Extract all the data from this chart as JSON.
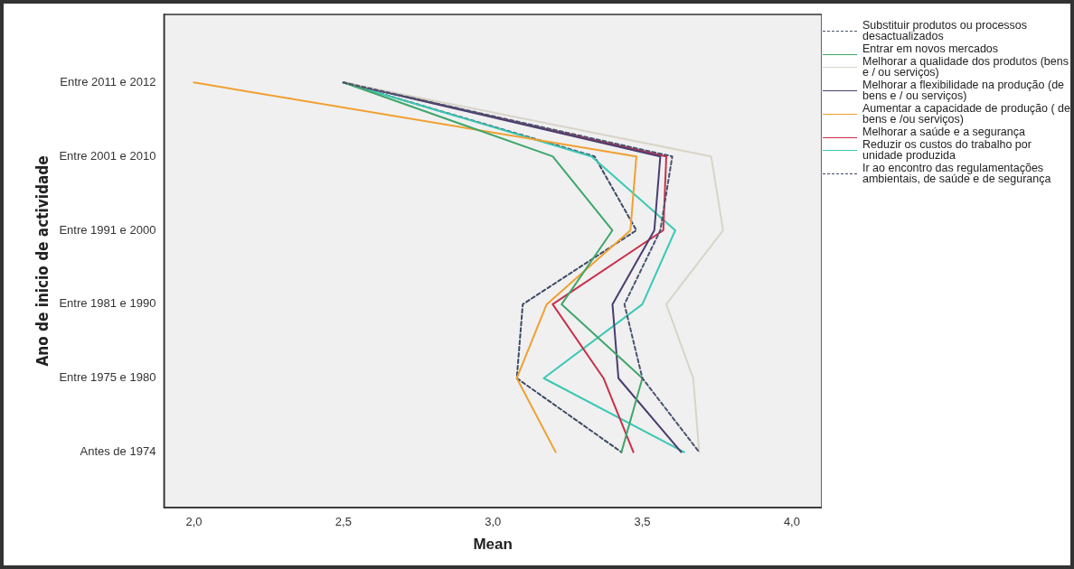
{
  "chart_data": {
    "type": "line",
    "orientation": "horizontal",
    "xlabel": "Mean",
    "ylabel": "Ano de inicio de actividade",
    "categories": [
      "Entre 2011 e 2012",
      "Entre 2001 e 2010",
      "Entre 1991 e 2000",
      "Entre 1981 e 1990",
      "Entre 1975 e 1980",
      "Antes de 1974"
    ],
    "xlim": [
      1.9,
      4.1
    ],
    "xticks": [
      {
        "value": 2,
        "label": "2,0"
      },
      {
        "value": 2.5,
        "label": "2,5"
      },
      {
        "value": 3,
        "label": "3,0"
      },
      {
        "value": 3.5,
        "label": "3,5"
      },
      {
        "value": 4,
        "label": "4,0"
      }
    ],
    "grid": false,
    "legend": "right",
    "marker": "none",
    "series": [
      {
        "name": "Substituir produtos ou processos desactualizados",
        "color": "#4a5470",
        "line_style": "dashed",
        "values": [
          2.5,
          3.6,
          3.56,
          3.44,
          3.5,
          3.69
        ]
      },
      {
        "name": "Entrar em novos mercados",
        "color": "#3fa66a",
        "values": [
          2.5,
          3.2,
          3.4,
          3.23,
          3.5,
          3.43
        ]
      },
      {
        "name": "Melhorar a qualidade dos produtos (bens e / ou serviços)",
        "color": "#d8d4c8",
        "values": [
          2.5,
          3.73,
          3.77,
          3.58,
          3.67,
          3.69
        ]
      },
      {
        "name": "Melhorar a flexibilidade na produção (de bens e / ou serviços)",
        "color": "#4b3c70",
        "values": [
          2.5,
          3.56,
          3.54,
          3.4,
          3.42,
          3.63
        ]
      },
      {
        "name": "Aumentar a capacidade de produção ( de bens e /ou serviços)",
        "color": "#f0a030",
        "values": [
          2.0,
          3.48,
          3.46,
          3.18,
          3.08,
          3.21
        ]
      },
      {
        "name": "Melhorar a saúde e a segurança",
        "color": "#c8304a",
        "values": [
          2.5,
          3.58,
          3.57,
          3.2,
          3.37,
          3.47
        ]
      },
      {
        "name": "Reduzir os custos do trabalho por unidade produzida",
        "color": "#3cc8b4",
        "values": [
          2.5,
          3.33,
          3.61,
          3.5,
          3.17,
          3.64
        ]
      },
      {
        "name": "Ir ao encontro das regulamentações ambientais, de saúde e de segurança",
        "color": "#3d4a66",
        "line_style": "dashed",
        "values": [
          2.5,
          3.34,
          3.48,
          3.1,
          3.08,
          3.43
        ]
      }
    ]
  }
}
